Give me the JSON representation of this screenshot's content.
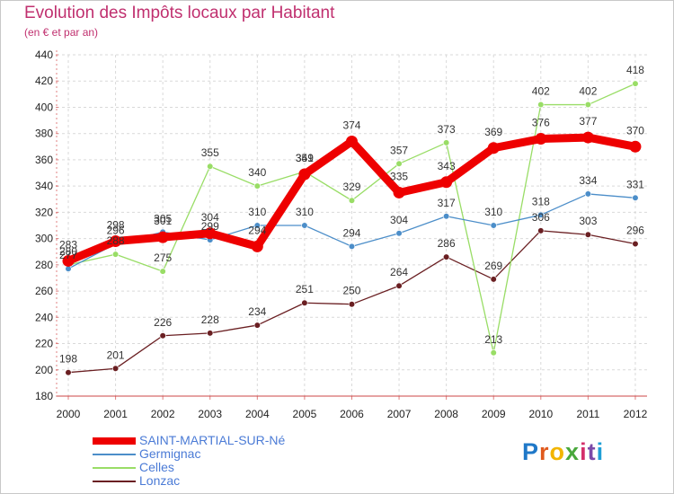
{
  "chart_data": {
    "type": "line",
    "title": "Evolution des Impôts locaux par Habitant",
    "subtitle": "(en € et par an)",
    "categories": [
      "2000",
      "2001",
      "2002",
      "2003",
      "2004",
      "2005",
      "2006",
      "2007",
      "2008",
      "2009",
      "2010",
      "2011",
      "2012"
    ],
    "ylim": [
      180,
      440
    ],
    "yticks": [
      180,
      200,
      220,
      240,
      260,
      280,
      300,
      320,
      340,
      360,
      380,
      400,
      420,
      440
    ],
    "grid": true,
    "legend_position": "bottom-left",
    "series": [
      {
        "name": "Lonzac",
        "color": "#6a1f22",
        "values": [
          198,
          201,
          226,
          228,
          234,
          251,
          250,
          264,
          286,
          269,
          306,
          303,
          296
        ]
      },
      {
        "name": "Celles",
        "color": "#99dd66",
        "values": [
          280,
          288,
          275,
          355,
          340,
          351,
          329,
          357,
          373,
          213,
          402,
          402,
          418
        ]
      },
      {
        "name": "Germignac",
        "color": "#4c8ec9",
        "values": [
          277,
          296,
          305,
          299,
          310,
          310,
          294,
          304,
          317,
          310,
          318,
          334,
          331
        ]
      },
      {
        "name": "SAINT-MARTIAL-SUR-Né",
        "color": "#ee0000",
        "values": [
          283,
          298,
          301,
          304,
          294,
          349,
          374,
          335,
          343,
          369,
          376,
          377,
          370
        ]
      }
    ]
  },
  "legend": {
    "items": [
      {
        "name": "SAINT-MARTIAL-SUR-Né",
        "color": "#ee0000"
      },
      {
        "name": "Germignac",
        "color": "#4c8ec9"
      },
      {
        "name": "Celles",
        "color": "#99dd66"
      },
      {
        "name": "Lonzac",
        "color": "#6a1f22"
      }
    ]
  },
  "logo": {
    "letters": [
      "P",
      "r",
      "o",
      "x",
      "i",
      "t",
      "i"
    ],
    "colors": [
      "#1f78c8",
      "#e05a1e",
      "#f2b500",
      "#49a83c",
      "#d42f6a",
      "#7b4aa8",
      "#1f9fd6"
    ]
  }
}
